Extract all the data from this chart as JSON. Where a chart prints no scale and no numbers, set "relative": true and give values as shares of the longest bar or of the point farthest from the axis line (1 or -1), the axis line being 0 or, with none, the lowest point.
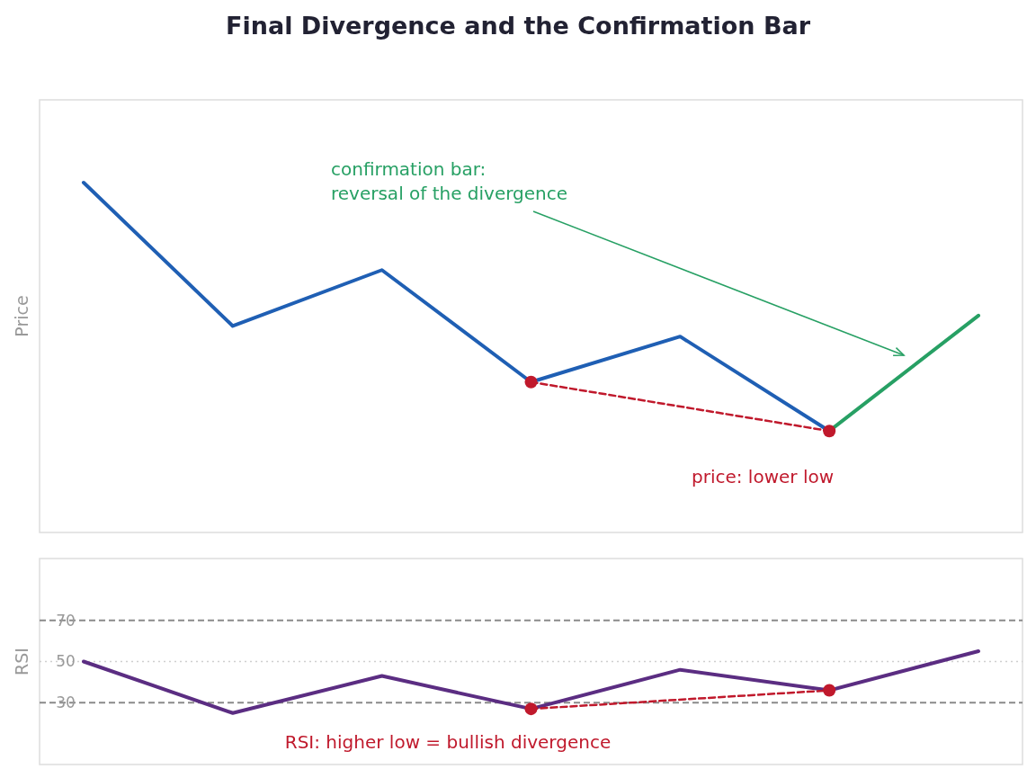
{
  "chart_data": [
    {
      "type": "line",
      "title": "Final Divergence and the Confirmation Bar",
      "ylabel": "Price",
      "relative": true,
      "categories": [
        null,
        null,
        null,
        null,
        null,
        null,
        null
      ],
      "series": [
        {
          "color": "#1f5fb4",
          "values": [
            1,
            0.59,
            0.75,
            0.43,
            0.56,
            0.29,
            null
          ]
        },
        {
          "color": "#27a064",
          "values": [
            null,
            null,
            null,
            null,
            null,
            0.29,
            0.62
          ]
        },
        {
          "color": "#c0192c",
          "values": [
            null,
            null,
            null,
            0.43,
            null,
            0.29,
            null
          ],
          "marker": "circle",
          "line_style": "dashed"
        }
      ],
      "annotations": [
        "confirmation bar:\nreversal of the divergence",
        "price: lower low"
      ]
    },
    {
      "type": "line",
      "ylabel": "RSI",
      "categories": [
        null,
        null,
        null,
        null,
        null,
        null,
        null
      ],
      "ylim": [
        0,
        100
      ],
      "yticks": [
        30,
        50,
        70
      ],
      "tick_labels": "y",
      "series": [
        {
          "color": "#5b2d82",
          "values": [
            50,
            25,
            43,
            27,
            46,
            36,
            55
          ]
        },
        {
          "color": "#c0192c",
          "values": [
            null,
            null,
            null,
            27,
            null,
            36,
            null
          ],
          "marker": "circle",
          "line_style": "dashed"
        }
      ],
      "ref_lines": [
        {
          "axis": "y",
          "value": 70,
          "color": "#8a8a8a",
          "line_style": "dashed"
        },
        {
          "axis": "y",
          "value": 50,
          "color": "#cfcfcf",
          "line_style": "dotted"
        },
        {
          "axis": "y",
          "value": 30,
          "color": "#8a8a8a",
          "line_style": "dashed"
        }
      ],
      "annotations": [
        "RSI: higher low = bullish divergence"
      ]
    }
  ]
}
